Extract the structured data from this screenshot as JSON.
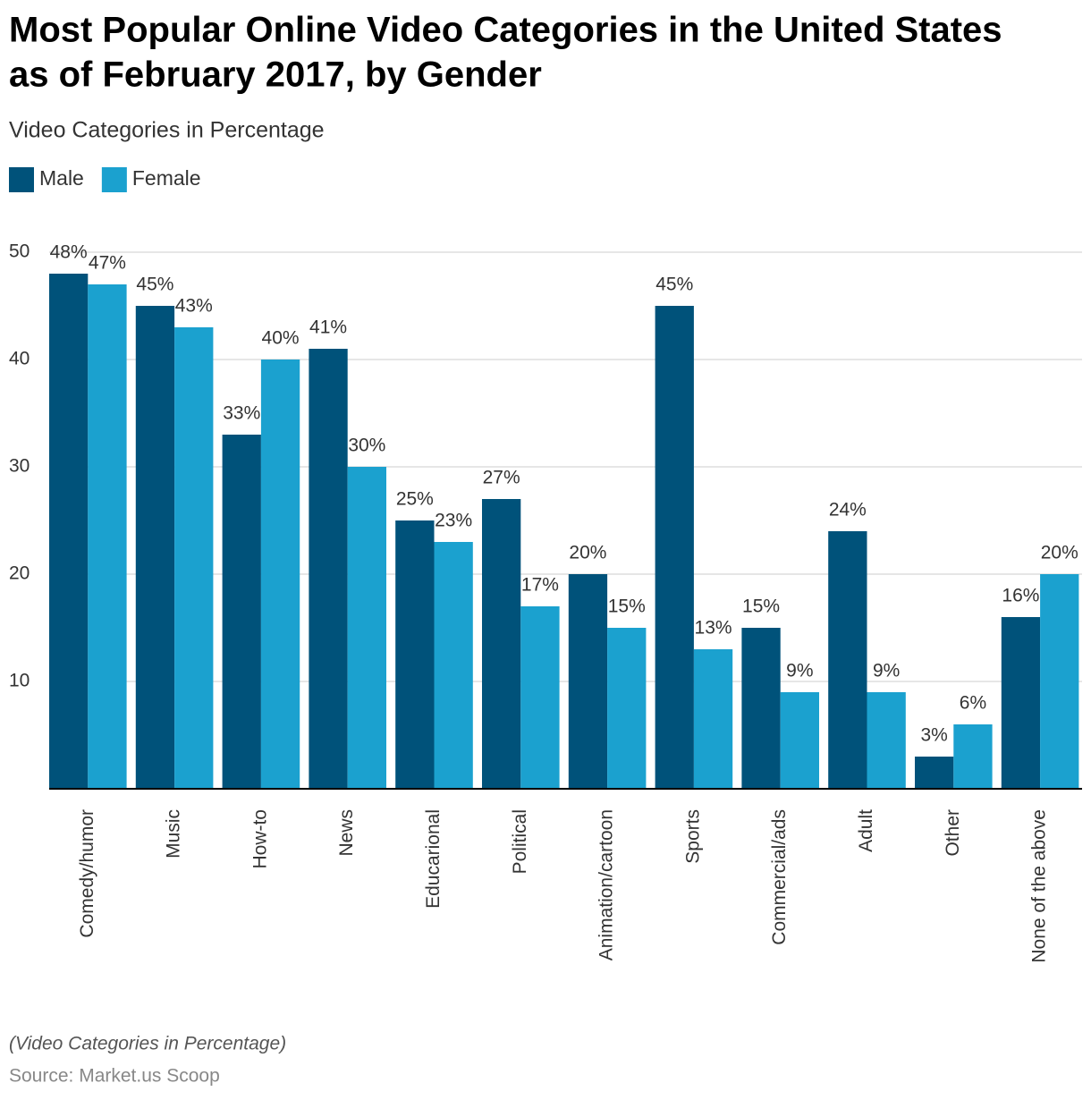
{
  "chart_data": {
    "type": "bar",
    "title": [
      "Most Popular Online Video Categories in the United States",
      "as of February 2017, by Gender"
    ],
    "subtitle": "Video Categories in Percentage",
    "categories": [
      "Comedy/humor",
      "Music",
      "How-to",
      "News",
      "Educarional",
      "Political",
      "Animation/cartoon",
      "Sports",
      "Commercial/ads",
      "Adult",
      "Other",
      "None of the above"
    ],
    "series": [
      {
        "name": "Male",
        "color": "#00527a",
        "values": [
          48,
          45,
          33,
          41,
          25,
          27,
          20,
          45,
          15,
          24,
          3,
          16
        ],
        "value_labels": [
          "48%",
          "45%",
          "33%",
          "41%",
          "25%",
          "27%",
          "20%",
          "45%",
          "15%",
          "24%",
          "3%",
          "16%"
        ]
      },
      {
        "name": "Female",
        "color": "#1ba1cf",
        "values": [
          47,
          43,
          40,
          30,
          23,
          17,
          15,
          13,
          9,
          9,
          6,
          20
        ],
        "value_labels": [
          "47%",
          "43%",
          "40%",
          "30%",
          "23%",
          "17%",
          "15%",
          "13%",
          "9%",
          "9%",
          "6%",
          "20%"
        ]
      }
    ],
    "ylim": [
      0,
      50
    ],
    "yticks": [
      10,
      20,
      30,
      40,
      50
    ],
    "grid": true,
    "note": "(Video Categories in Percentage)",
    "source": "Source: Market.us Scoop"
  }
}
